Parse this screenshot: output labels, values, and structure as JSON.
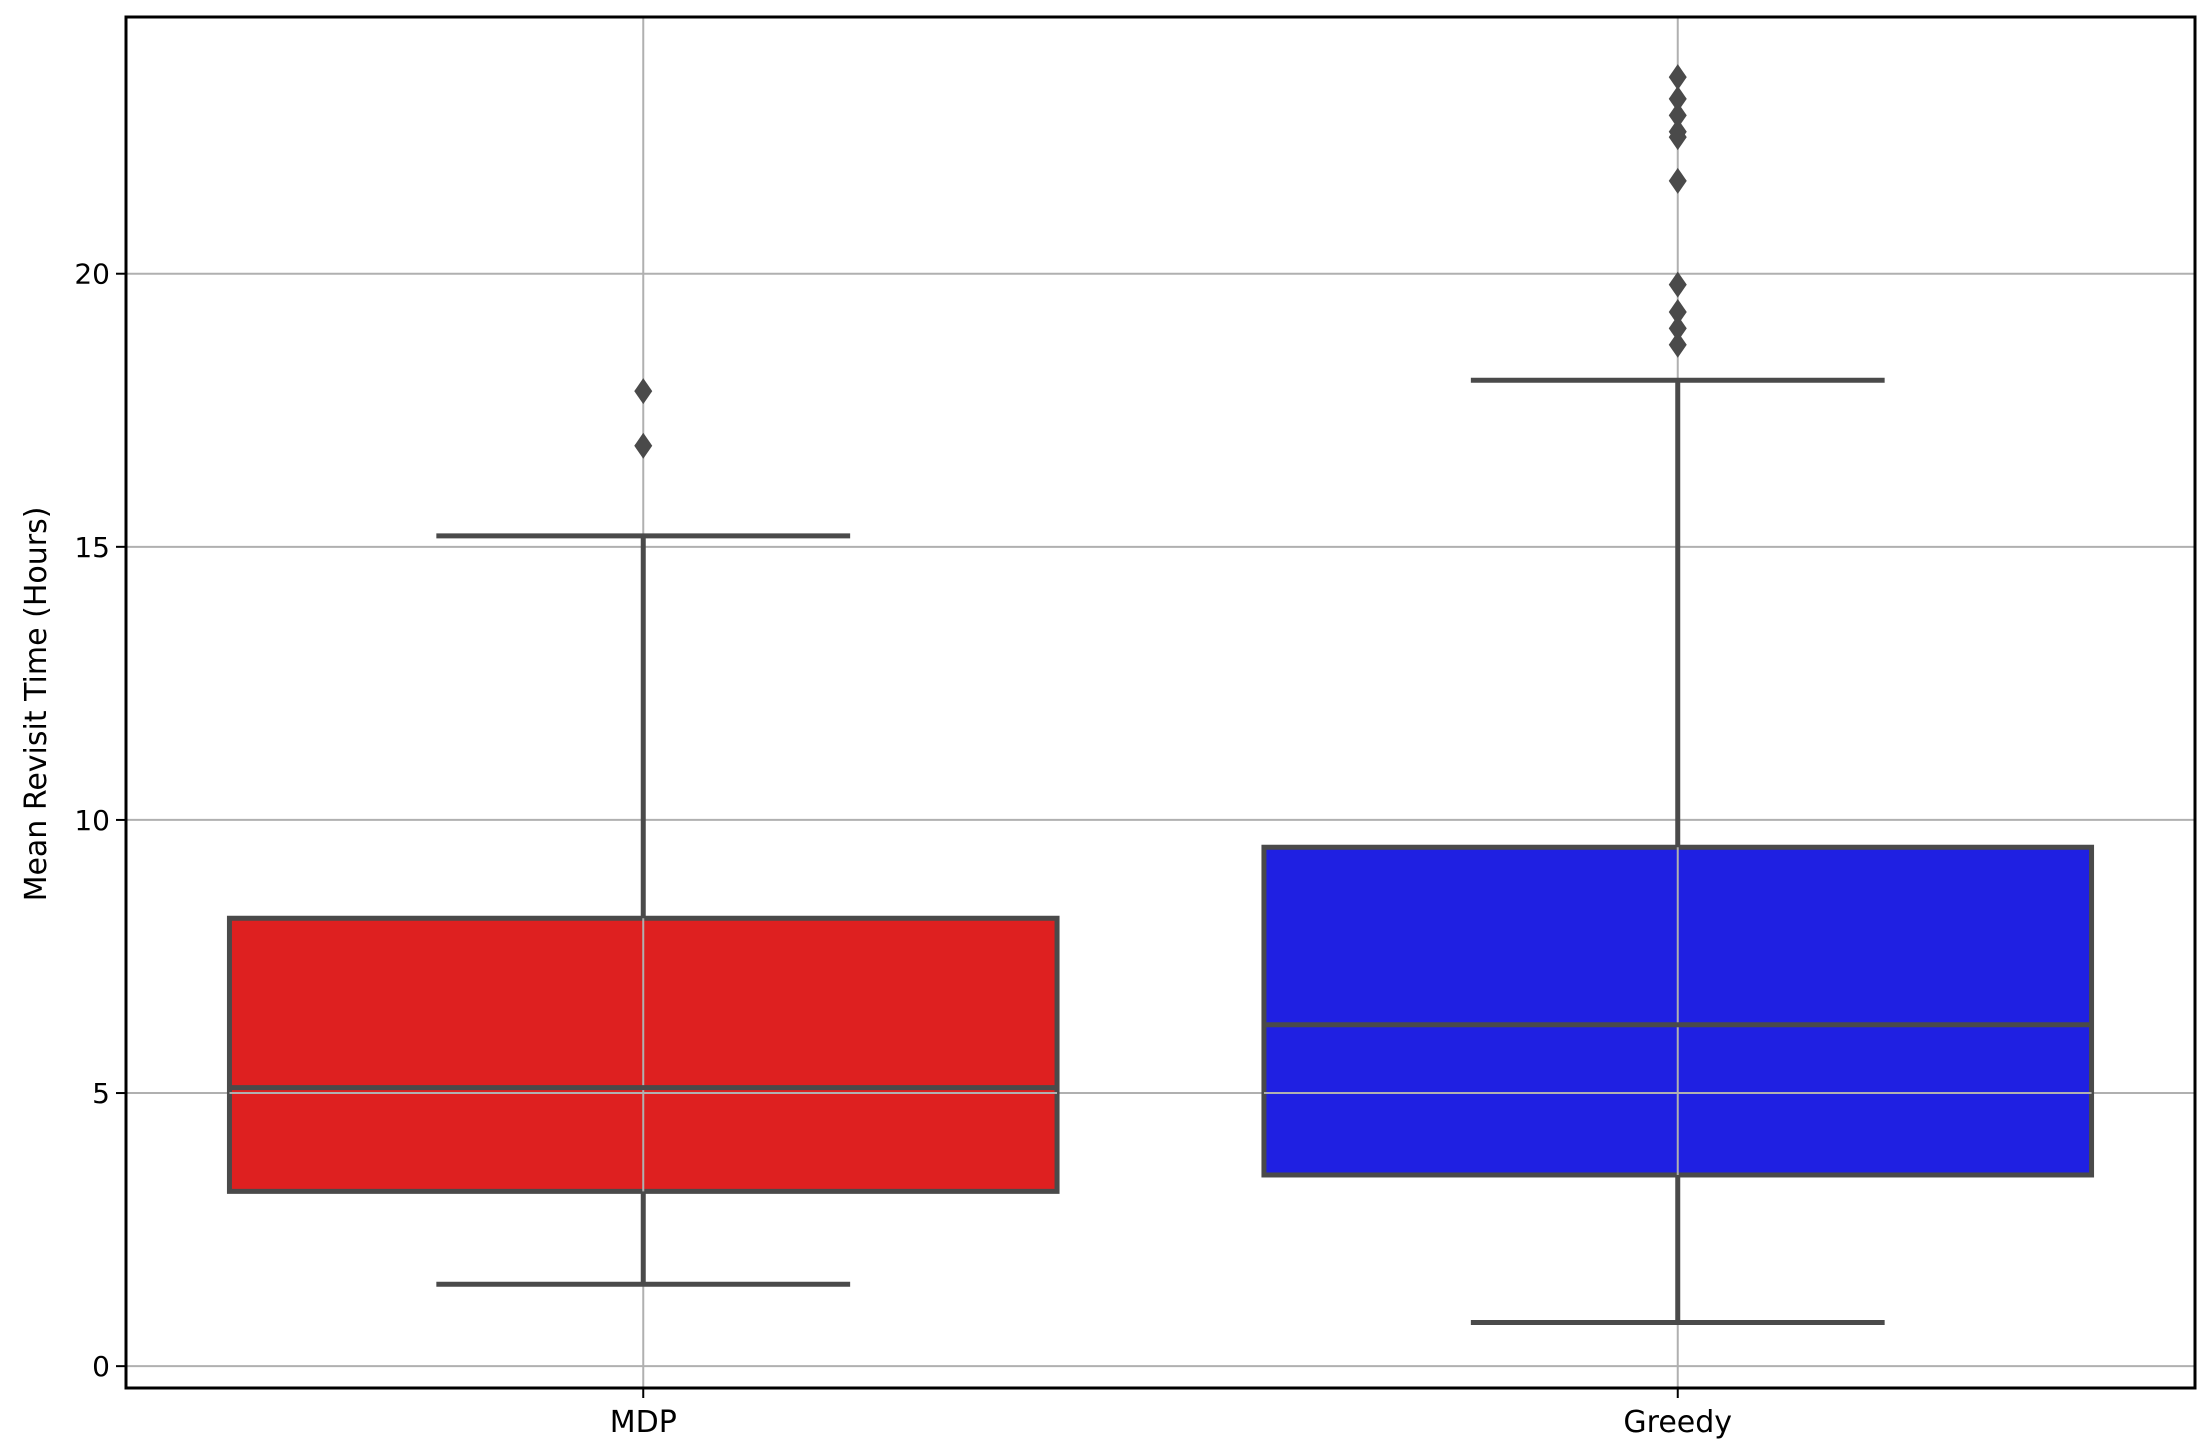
{
  "chart_data": {
    "type": "box",
    "title": "",
    "xlabel": "",
    "ylabel": "Mean Revisit Time (Hours)",
    "ylim": [
      -0.4,
      24.7
    ],
    "yticks": [
      0,
      5,
      10,
      15,
      20
    ],
    "grid": true,
    "categories": [
      "MDP",
      "Greedy"
    ],
    "series": [
      {
        "category": "MDP",
        "color": "#de2020",
        "whisker_low": 1.5,
        "q1": 3.2,
        "median": 5.1,
        "q3": 8.2,
        "whisker_high": 15.2,
        "outliers": [
          16.85,
          17.85
        ]
      },
      {
        "category": "Greedy",
        "color": "#1f20e2",
        "whisker_low": 0.8,
        "q1": 3.5,
        "median": 6.25,
        "q3": 9.5,
        "whisker_high": 18.05,
        "outliers": [
          18.7,
          19.0,
          19.3,
          19.8,
          21.7,
          22.5,
          22.6,
          22.9,
          23.2,
          23.6
        ]
      }
    ]
  }
}
